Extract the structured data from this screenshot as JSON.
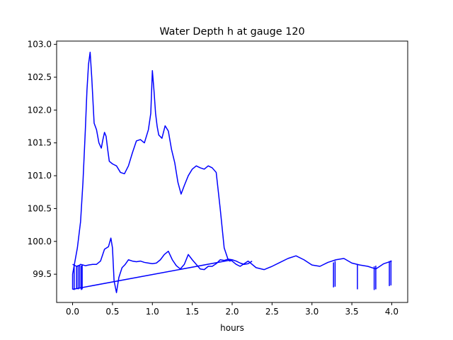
{
  "chart_data": {
    "type": "line",
    "title": "Water Depth h at gauge 120",
    "xlabel": "hours",
    "ylabel": "",
    "xlim": [
      -0.2,
      4.2
    ],
    "ylim": [
      99.07,
      103.05
    ],
    "grid": false,
    "xticks": [
      "0.0",
      "0.5",
      "1.0",
      "1.5",
      "2.0",
      "2.5",
      "3.0",
      "3.5",
      "4.0"
    ],
    "yticks": [
      "99.5",
      "100.0",
      "100.5",
      "101.0",
      "101.5",
      "102.0",
      "102.5",
      "103.0"
    ],
    "series": [
      {
        "color": "#0000ff",
        "x": [
          0.0,
          0.0,
          0.03,
          0.06,
          0.1,
          0.13,
          0.16,
          0.18,
          0.2,
          0.22,
          0.24,
          0.27,
          0.3,
          0.33,
          0.36,
          0.38,
          0.4,
          0.42,
          0.44,
          0.46,
          0.5,
          0.55,
          0.6,
          0.65,
          0.7,
          0.75,
          0.8,
          0.85,
          0.9,
          0.95,
          0.98,
          1.0,
          1.02,
          1.04,
          1.06,
          1.08,
          1.12,
          1.16,
          1.2,
          1.24,
          1.28,
          1.32,
          1.36,
          1.4,
          1.45,
          1.5,
          1.55,
          1.6,
          1.65,
          1.7,
          1.75,
          1.8,
          1.85,
          1.9,
          1.95,
          1.97,
          1.99,
          2.02,
          2.05,
          2.1,
          2.2,
          2.3,
          2.4,
          2.5,
          2.6,
          2.7,
          2.8,
          2.9,
          3.0,
          3.1,
          3.2,
          3.3,
          3.4,
          3.5,
          3.6,
          3.7,
          3.8,
          3.9,
          4.0
        ],
        "y": [
          99.27,
          99.5,
          99.7,
          99.9,
          100.3,
          100.9,
          101.7,
          102.3,
          102.7,
          102.88,
          102.5,
          101.8,
          101.7,
          101.5,
          101.42,
          101.55,
          101.66,
          101.6,
          101.4,
          101.22,
          101.18,
          101.15,
          101.05,
          101.03,
          101.15,
          101.35,
          101.53,
          101.55,
          101.5,
          101.7,
          101.95,
          102.6,
          102.3,
          101.95,
          101.75,
          101.62,
          101.57,
          101.76,
          101.68,
          101.4,
          101.2,
          100.9,
          100.72,
          100.85,
          101.0,
          101.1,
          101.15,
          101.12,
          101.1,
          101.15,
          101.12,
          101.05,
          100.5,
          99.9,
          99.72,
          99.7,
          99.71,
          99.68,
          99.65,
          99.62,
          99.7,
          99.6,
          99.57,
          99.62,
          99.68,
          99.74,
          99.78,
          99.72,
          99.64,
          99.62,
          99.68,
          99.72,
          99.74,
          99.67,
          99.64,
          99.62,
          99.58,
          99.66,
          99.7
        ]
      },
      {
        "color": "#0000ff",
        "x": [
          0.0,
          0.05,
          0.08,
          0.1,
          0.13,
          0.16,
          0.2,
          0.25,
          0.3,
          0.35,
          0.4,
          0.45,
          0.48,
          0.5,
          0.52,
          0.55,
          0.58,
          0.62,
          0.66,
          0.7,
          0.75,
          0.8,
          0.85,
          0.9,
          0.95,
          1.0,
          1.05,
          1.1,
          1.15,
          1.2,
          1.25,
          1.3,
          1.35,
          1.4,
          1.45,
          1.5,
          1.55,
          1.6,
          1.65,
          1.7,
          1.75,
          1.8,
          1.85,
          1.9,
          1.95,
          2.0,
          2.05,
          2.1,
          2.15,
          2.2,
          2.25
        ],
        "y": [
          99.65,
          99.62,
          99.63,
          99.65,
          99.64,
          99.63,
          99.64,
          99.65,
          99.65,
          99.7,
          99.88,
          99.92,
          100.05,
          99.9,
          99.4,
          99.22,
          99.45,
          99.6,
          99.65,
          99.72,
          99.7,
          99.69,
          99.7,
          99.68,
          99.67,
          99.66,
          99.67,
          99.72,
          99.8,
          99.85,
          99.72,
          99.63,
          99.58,
          99.65,
          99.8,
          99.72,
          99.65,
          99.58,
          99.57,
          99.62,
          99.62,
          99.66,
          99.72,
          99.71,
          99.73,
          99.72,
          99.7,
          99.67,
          99.65,
          99.66,
          99.7
        ]
      },
      {
        "color": "#0000ff",
        "x": [
          0.0,
          2.0
        ],
        "y": [
          99.27,
          99.72
        ]
      }
    ],
    "spikes": [
      {
        "x": 0.02,
        "y_top": 99.65,
        "y_bottom": 99.26
      },
      {
        "x": 0.05,
        "y_top": 99.63,
        "y_bottom": 99.28
      },
      {
        "x": 0.07,
        "y_top": 99.64,
        "y_bottom": 99.27
      },
      {
        "x": 0.09,
        "y_top": 99.64,
        "y_bottom": 99.28
      },
      {
        "x": 0.11,
        "y_top": 99.63,
        "y_bottom": 99.26
      },
      {
        "x": 0.12,
        "y_top": 99.64,
        "y_bottom": 99.27
      },
      {
        "x": 3.27,
        "y_top": 99.68,
        "y_bottom": 99.3
      },
      {
        "x": 3.29,
        "y_top": 99.7,
        "y_bottom": 99.31
      },
      {
        "x": 3.57,
        "y_top": 99.65,
        "y_bottom": 99.27
      },
      {
        "x": 3.78,
        "y_top": 99.62,
        "y_bottom": 99.26
      },
      {
        "x": 3.8,
        "y_top": 99.63,
        "y_bottom": 99.27
      },
      {
        "x": 3.97,
        "y_top": 99.7,
        "y_bottom": 99.32
      },
      {
        "x": 3.99,
        "y_top": 99.71,
        "y_bottom": 99.33
      }
    ]
  }
}
